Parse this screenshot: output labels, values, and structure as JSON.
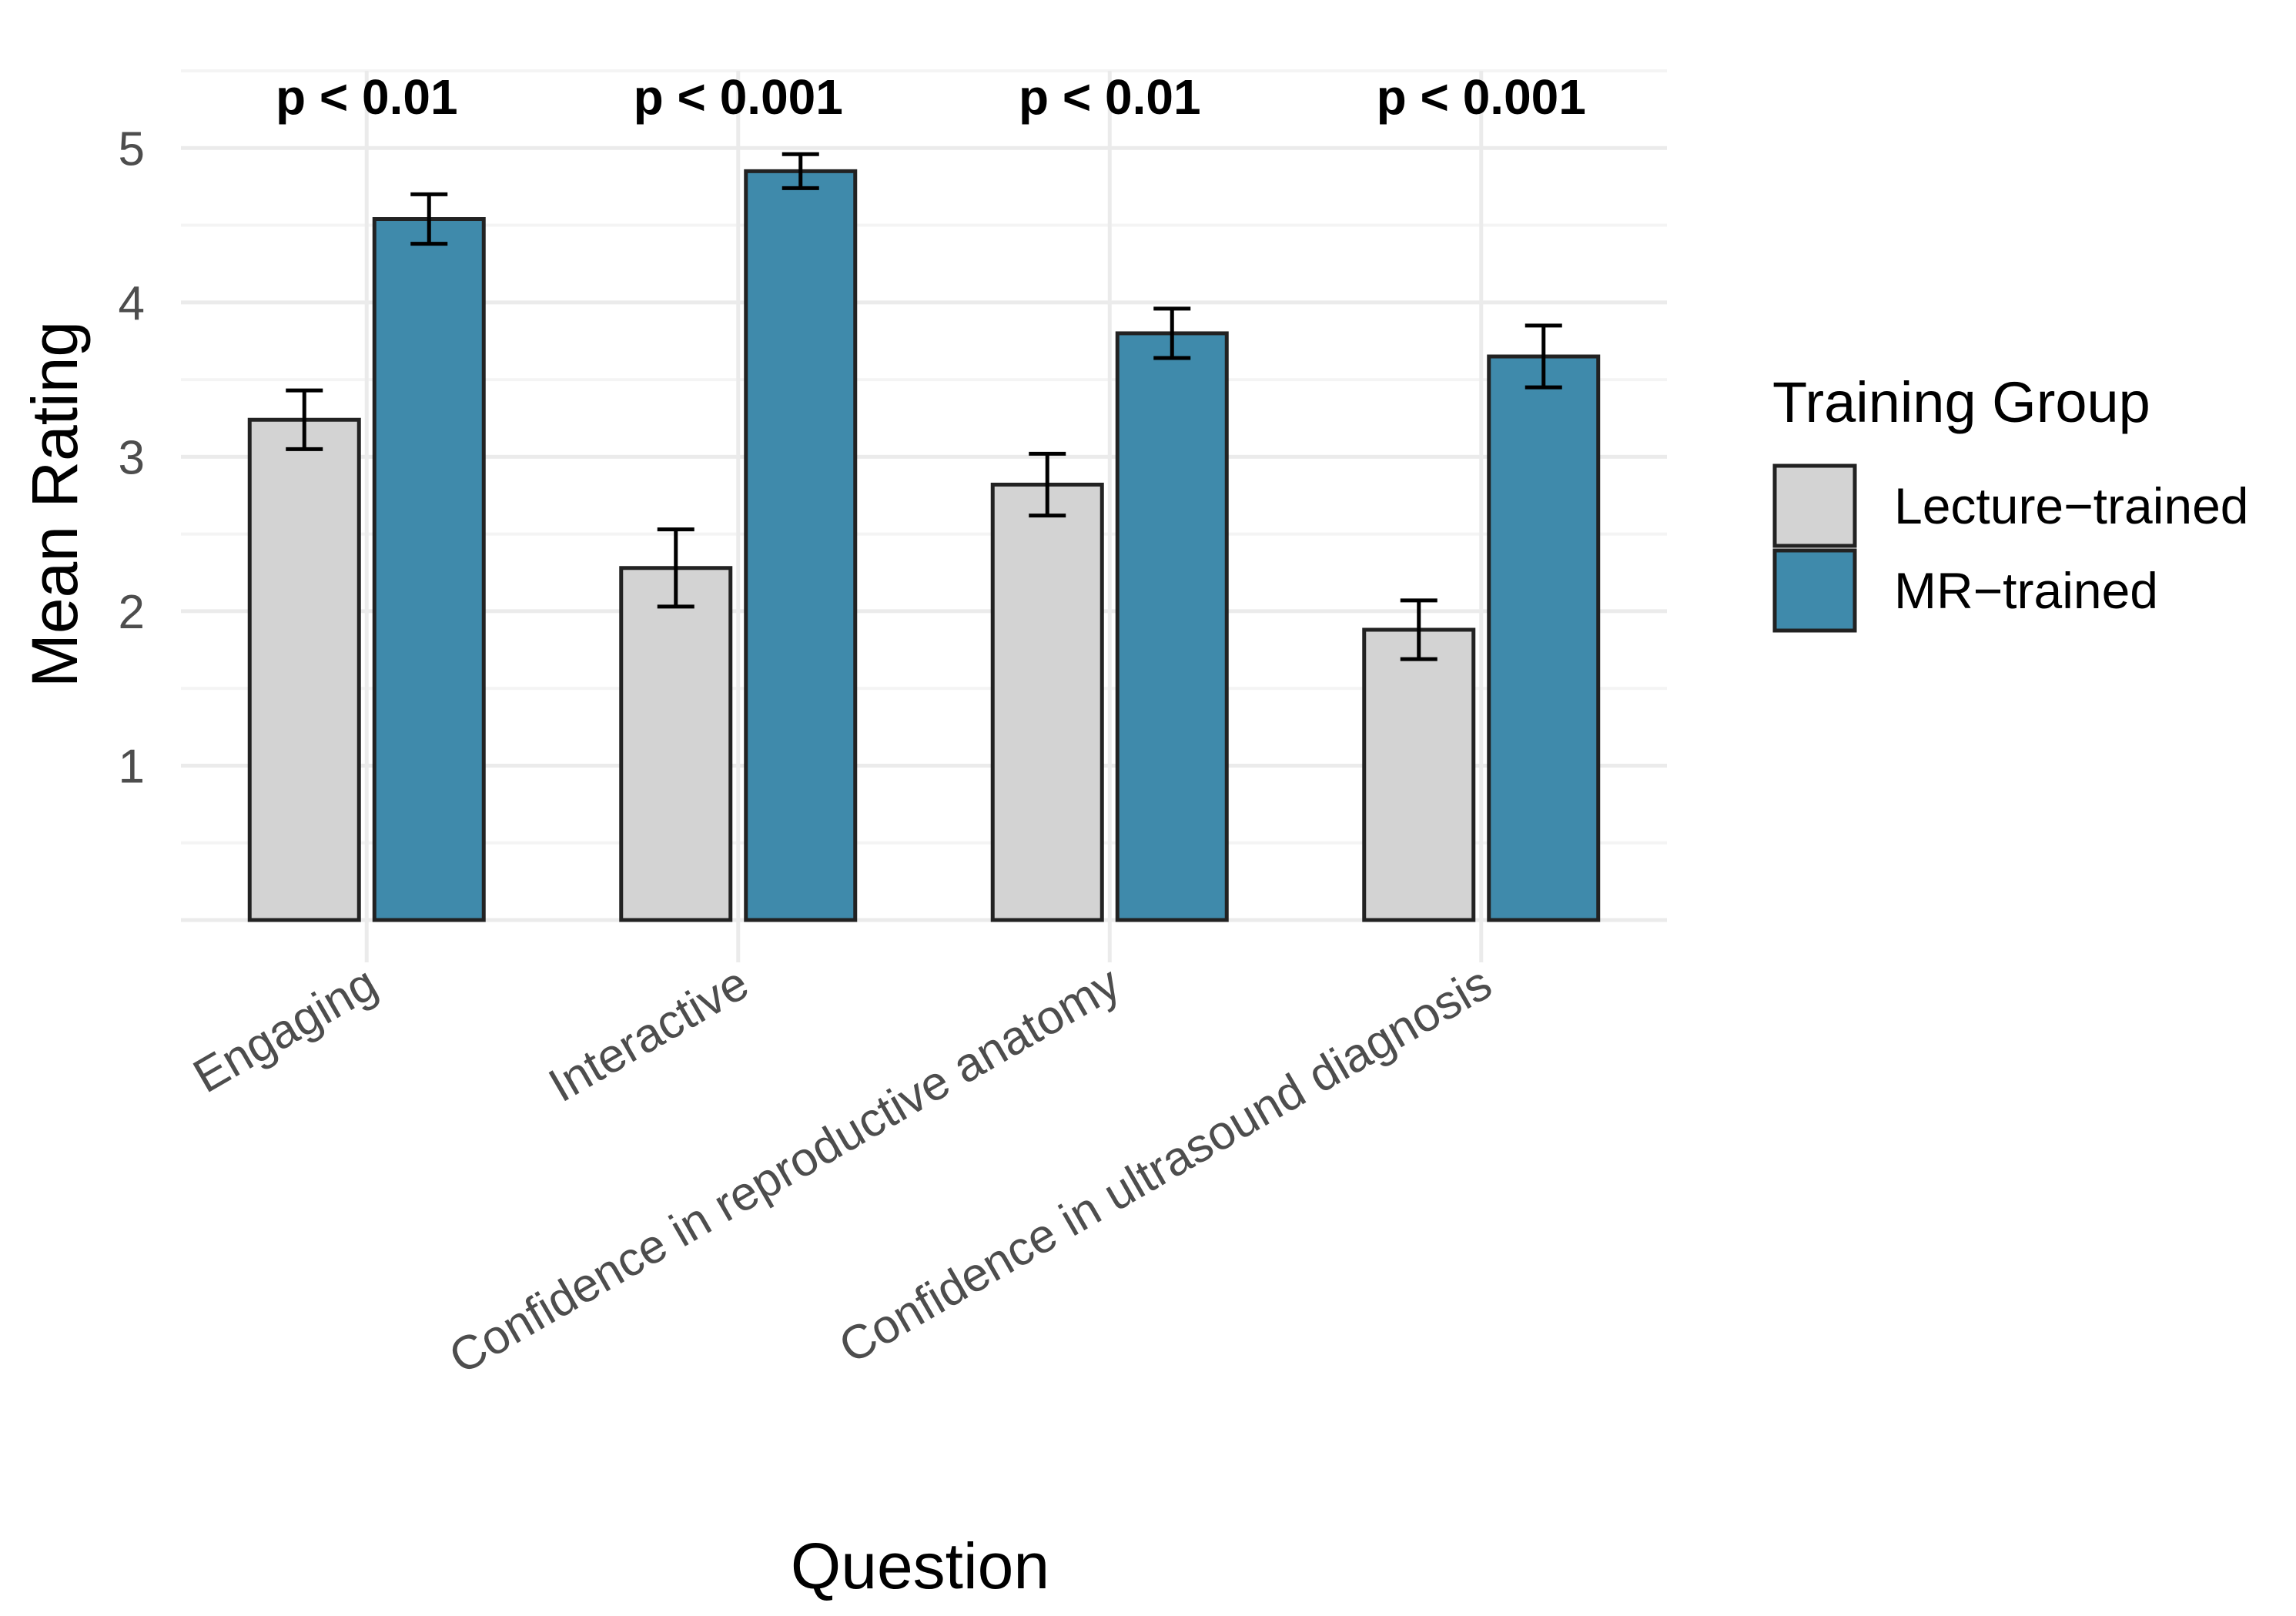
{
  "chart_data": {
    "type": "bar",
    "title": "",
    "xlabel": "Question",
    "ylabel": "Mean Rating",
    "ylim": [
      0,
      5.5
    ],
    "yticks": [
      1,
      2,
      3,
      4,
      5
    ],
    "categories": [
      "Engaging",
      "Interactive",
      "Confidence in reproductive anatomy",
      "Confidence in ultrasound diagnosis"
    ],
    "series": [
      {
        "name": "Lecture−trained",
        "color": "#d3d3d3",
        "values": [
          3.24,
          2.28,
          2.82,
          1.88
        ],
        "errors": [
          0.19,
          0.25,
          0.2,
          0.19
        ]
      },
      {
        "name": "MR−trained",
        "color": "#3f8aab",
        "values": [
          4.54,
          4.85,
          3.8,
          3.65
        ],
        "errors": [
          0.16,
          0.11,
          0.16,
          0.2
        ]
      }
    ],
    "annotations": [
      "p < 0.01",
      "p < 0.001",
      "p < 0.01",
      "p < 0.001"
    ],
    "legend": {
      "title": "Training Group",
      "position": "right"
    },
    "grid": true
  }
}
